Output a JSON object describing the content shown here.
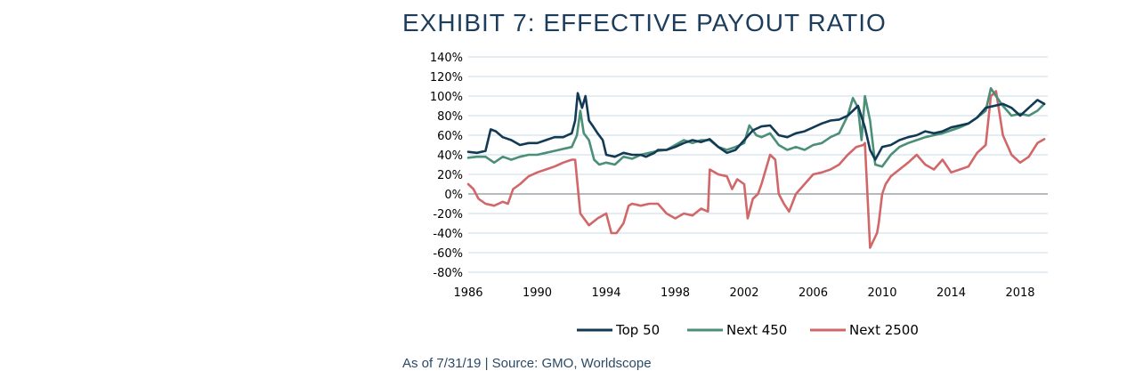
{
  "title": "EXHIBIT 7: EFFECTIVE PAYOUT RATIO",
  "footnote": "As of 7/31/19 | Source: GMO, Worldscope",
  "colors": {
    "top50": "#123a55",
    "next450": "#4a8f78",
    "next2500": "#d16769",
    "grid": "#c8d9e8",
    "zero": "#8a9199"
  },
  "chart_data": {
    "type": "line",
    "title": "EXHIBIT 7: EFFECTIVE PAYOUT RATIO",
    "xlabel": "",
    "ylabel": "",
    "xlim": [
      1986,
      2019.6
    ],
    "ylim": [
      -80,
      140
    ],
    "x_ticks": [
      1986,
      1990,
      1994,
      1998,
      2002,
      2006,
      2010,
      2014,
      2018
    ],
    "y_ticks": [
      -80,
      -60,
      -40,
      -20,
      0,
      20,
      40,
      60,
      80,
      100,
      120,
      140
    ],
    "y_tick_labels": [
      "-80%",
      "-60%",
      "-40%",
      "-20%",
      "0%",
      "20%",
      "40%",
      "60%",
      "80%",
      "100%",
      "120%",
      "140%"
    ],
    "grid": "horizontal",
    "legend": "bottom-center",
    "series": [
      {
        "name": "Top 50",
        "color": "#123a55",
        "x": [
          1986,
          1986.5,
          1987,
          1987.3,
          1987.6,
          1988,
          1988.5,
          1989,
          1989.5,
          1990,
          1990.5,
          1991,
          1991.5,
          1992,
          1992.2,
          1992.35,
          1992.6,
          1992.8,
          1993,
          1993.2,
          1993.5,
          1993.8,
          1994,
          1994.5,
          1995,
          1995.5,
          1996,
          1996.3,
          1996.8,
          1997,
          1997.5,
          1998,
          1998.5,
          1999,
          1999.5,
          2000,
          2000.5,
          2001,
          2001.5,
          2002,
          2002.5,
          2003,
          2003.5,
          2004,
          2004.5,
          2005,
          2005.5,
          2006,
          2006.5,
          2007,
          2007.5,
          2008,
          2008.3,
          2008.6,
          2009,
          2009.3,
          2009.6,
          2010,
          2010.5,
          2011,
          2011.5,
          2012,
          2012.5,
          2013,
          2013.5,
          2014,
          2014.5,
          2015,
          2015.5,
          2016,
          2016.5,
          2017,
          2017.5,
          2018,
          2018.5,
          2019,
          2019.4
        ],
        "values": [
          43,
          42,
          44,
          66,
          64,
          58,
          55,
          50,
          52,
          52,
          55,
          58,
          58,
          62,
          75,
          103,
          88,
          100,
          75,
          70,
          62,
          55,
          40,
          38,
          42,
          40,
          40,
          38,
          42,
          45,
          45,
          48,
          52,
          55,
          53,
          56,
          48,
          42,
          45,
          55,
          65,
          69,
          70,
          60,
          58,
          62,
          64,
          68,
          72,
          75,
          76,
          80,
          85,
          90,
          68,
          45,
          35,
          48,
          50,
          55,
          58,
          60,
          64,
          62,
          64,
          68,
          70,
          72,
          78,
          88,
          90,
          92,
          88,
          80,
          88,
          96,
          92
        ]
      },
      {
        "name": "Next 450",
        "color": "#4a8f78",
        "x": [
          1986,
          1986.5,
          1987,
          1987.5,
          1988,
          1988.5,
          1989,
          1989.5,
          1990,
          1990.5,
          1991,
          1991.5,
          1992,
          1992.3,
          1992.5,
          1992.7,
          1993,
          1993.3,
          1993.6,
          1994,
          1994.5,
          1995,
          1995.5,
          1996,
          1996.5,
          1997,
          1997.5,
          1998,
          1998.5,
          1999,
          1999.5,
          2000,
          2000.5,
          2001,
          2001.5,
          2002,
          2002.3,
          2002.7,
          2003,
          2003.5,
          2004,
          2004.5,
          2005,
          2005.5,
          2006,
          2006.5,
          2007,
          2007.5,
          2008,
          2008.3,
          2008.6,
          2008.8,
          2009,
          2009.3,
          2009.6,
          2010,
          2010.5,
          2011,
          2011.5,
          2012,
          2012.5,
          2013,
          2013.5,
          2014,
          2014.5,
          2015,
          2015.5,
          2016,
          2016.3,
          2016.6,
          2017,
          2017.5,
          2018,
          2018.5,
          2019,
          2019.4
        ],
        "values": [
          37,
          38,
          38,
          32,
          38,
          35,
          38,
          40,
          40,
          42,
          44,
          46,
          48,
          60,
          85,
          62,
          55,
          35,
          30,
          32,
          30,
          38,
          36,
          40,
          42,
          44,
          45,
          50,
          55,
          52,
          55,
          55,
          48,
          45,
          48,
          52,
          70,
          60,
          58,
          62,
          50,
          45,
          48,
          45,
          50,
          52,
          58,
          62,
          80,
          98,
          88,
          55,
          100,
          75,
          30,
          28,
          40,
          48,
          52,
          55,
          58,
          60,
          62,
          65,
          68,
          72,
          78,
          85,
          108,
          100,
          90,
          80,
          82,
          80,
          85,
          92
        ]
      },
      {
        "name": "Next 2500",
        "color": "#d16769",
        "x": [
          1986,
          1986.3,
          1986.6,
          1987,
          1987.5,
          1988,
          1988.3,
          1988.6,
          1989,
          1989.5,
          1990,
          1990.5,
          1991,
          1991.5,
          1992,
          1992.2,
          1992.5,
          1993,
          1993.5,
          1994,
          1994.3,
          1994.6,
          1995,
          1995.3,
          1995.5,
          1996,
          1996.5,
          1997,
          1997.5,
          1998,
          1998.5,
          1999,
          1999.5,
          1999.9,
          2000,
          2000.5,
          2001,
          2001.3,
          2001.6,
          2002,
          2002.2,
          2002.5,
          2002.8,
          2003,
          2003.5,
          2003.8,
          2004,
          2004.3,
          2004.6,
          2005,
          2005.5,
          2006,
          2006.5,
          2007,
          2007.5,
          2008,
          2008.5,
          2008.9,
          2009,
          2009.3,
          2009.7,
          2009.8,
          2010,
          2010.2,
          2010.5,
          2011,
          2011.5,
          2012,
          2012.5,
          2013,
          2013.5,
          2014,
          2014.5,
          2015,
          2015.5,
          2016,
          2016.3,
          2016.6,
          2017,
          2017.5,
          2018,
          2018.5,
          2019,
          2019.4
        ],
        "values": [
          10,
          5,
          -5,
          -10,
          -12,
          -8,
          -10,
          5,
          10,
          18,
          22,
          25,
          28,
          32,
          35,
          35,
          -20,
          -32,
          -25,
          -20,
          -40,
          -40,
          -30,
          -12,
          -10,
          -12,
          -10,
          -10,
          -20,
          -25,
          -20,
          -22,
          -15,
          -18,
          25,
          20,
          18,
          5,
          15,
          10,
          -25,
          -5,
          0,
          10,
          40,
          35,
          0,
          -10,
          -18,
          0,
          10,
          20,
          22,
          25,
          30,
          40,
          48,
          50,
          52,
          -55,
          -40,
          -30,
          0,
          10,
          18,
          25,
          32,
          40,
          30,
          25,
          35,
          22,
          25,
          28,
          42,
          50,
          100,
          105,
          60,
          40,
          32,
          38,
          52,
          56
        ]
      }
    ]
  }
}
